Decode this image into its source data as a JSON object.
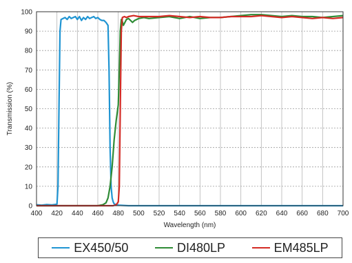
{
  "chart_data": {
    "type": "line",
    "xlabel": "Wavelength (nm)",
    "ylabel": "Transmission (%)",
    "xlim": [
      400,
      700
    ],
    "ylim": [
      0,
      100
    ],
    "xticks": [
      400,
      420,
      440,
      460,
      480,
      500,
      520,
      540,
      560,
      580,
      600,
      620,
      640,
      660,
      680,
      700
    ],
    "yticks": [
      0,
      10,
      20,
      30,
      40,
      50,
      60,
      70,
      80,
      90,
      100
    ],
    "grid": true,
    "legend_position": "bottom",
    "series": [
      {
        "name": "EX450/50",
        "color": "#1f94d2",
        "x": [
          400,
          405,
          410,
          415,
          420,
          421,
          422,
          423,
          424,
          426,
          428,
          430,
          432,
          434,
          436,
          438,
          440,
          442,
          444,
          446,
          448,
          450,
          452,
          454,
          456,
          458,
          460,
          462,
          464,
          466,
          468,
          470,
          471,
          472,
          473,
          474,
          475,
          476,
          478,
          480,
          482,
          490,
          500,
          550,
          600,
          650,
          700
        ],
        "y": [
          0.5,
          0.3,
          0.6,
          0.4,
          0.8,
          10,
          50,
          90,
          96,
          96.5,
          97,
          96,
          97.5,
          96.5,
          97,
          97.5,
          96,
          97.5,
          95.5,
          97,
          96,
          97.5,
          96.5,
          97,
          97.5,
          96.5,
          97,
          96,
          95.5,
          95.5,
          94.5,
          93,
          70,
          30,
          10,
          4,
          2,
          1,
          0.5,
          0.3,
          0.2,
          0,
          0,
          0,
          0,
          0,
          0
        ]
      },
      {
        "name": "DI480LP",
        "color": "#2e8b35",
        "x": [
          400,
          410,
          420,
          440,
          460,
          465,
          468,
          470,
          472,
          474,
          476,
          478,
          480,
          481,
          482,
          483,
          484,
          485,
          486,
          488,
          490,
          492,
          494,
          496,
          498,
          500,
          505,
          510,
          520,
          530,
          540,
          550,
          560,
          570,
          580,
          590,
          600,
          610,
          620,
          630,
          640,
          650,
          660,
          670,
          680,
          690,
          700
        ],
        "y": [
          0,
          0,
          0,
          0,
          0,
          0.5,
          1.5,
          4,
          10,
          20,
          34,
          44,
          52,
          70,
          90,
          96,
          95,
          93,
          94,
          96,
          96.5,
          95.5,
          94.5,
          95.5,
          96,
          96.5,
          97,
          96.5,
          97,
          97.5,
          96.5,
          97.5,
          96.5,
          97,
          97,
          97.5,
          98,
          98.5,
          98.5,
          98,
          97.5,
          98,
          97.5,
          97.5,
          97,
          97.5,
          98
        ]
      },
      {
        "name": "EM485LP",
        "color": "#d32a24",
        "x": [
          400,
          450,
          475,
          478,
          480,
          481,
          482,
          483,
          484,
          486,
          488,
          490,
          495,
          500,
          510,
          520,
          530,
          540,
          550,
          560,
          570,
          580,
          590,
          600,
          610,
          620,
          630,
          640,
          650,
          660,
          670,
          680,
          690,
          700
        ],
        "y": [
          0,
          0,
          0,
          0.5,
          2,
          10,
          50,
          90,
          97,
          97.5,
          97,
          97.5,
          98,
          97.5,
          97.5,
          97.5,
          98,
          97.5,
          97,
          97.5,
          97,
          97,
          97.5,
          97.5,
          97.5,
          98,
          97.5,
          97,
          97.5,
          97,
          96.5,
          97,
          96.5,
          97
        ]
      }
    ]
  }
}
